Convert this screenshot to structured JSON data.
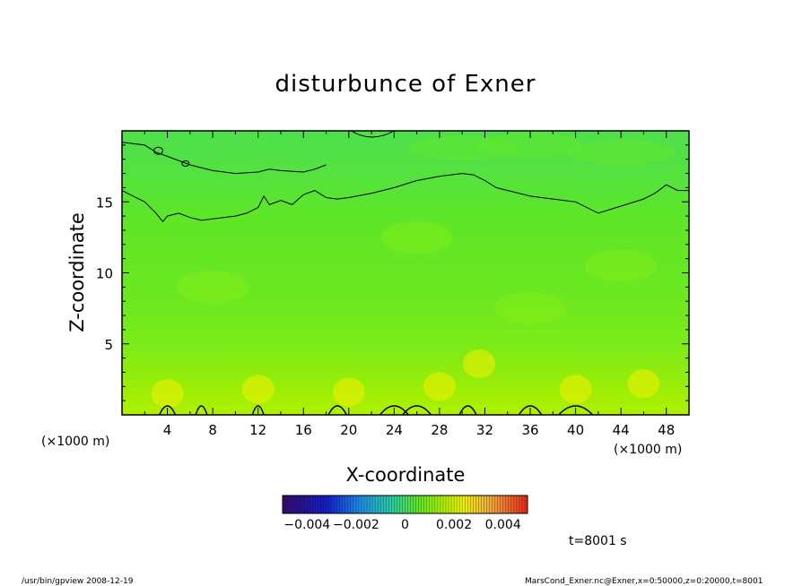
{
  "chart_data": {
    "type": "heatmap",
    "title": "disturbunce of Exner",
    "xlabel": "X-coordinate",
    "ylabel": "Z-coordinate",
    "x_unit_left": "(×1000 m)",
    "x_unit_right": "(×1000 m)",
    "xlim": [
      0,
      50
    ],
    "ylim": [
      0,
      20
    ],
    "x_ticks": [
      4,
      8,
      12,
      16,
      20,
      24,
      28,
      32,
      36,
      40,
      44,
      48
    ],
    "y_ticks": [
      5,
      10,
      15
    ],
    "colorbar": {
      "min": -0.005,
      "max": 0.005,
      "tick_labels": [
        "−0.004",
        "−0.002",
        "0",
        "0.002",
        "0.004"
      ],
      "tick_values": [
        -0.004,
        -0.002,
        0,
        0.002,
        0.004
      ],
      "colormap": "rainbow"
    },
    "field_by_height": {
      "z": [
        0,
        2,
        5,
        8,
        11,
        14,
        17,
        20
      ],
      "value": [
        0.0016,
        0.0013,
        0.0009,
        0.0007,
        0.0006,
        0.0005,
        0.0003,
        0.0002
      ]
    },
    "contour_upper": {
      "x": [
        0,
        1,
        2,
        3,
        3.6,
        4,
        5,
        6,
        7,
        8,
        9,
        10,
        11,
        12,
        12.5,
        13,
        14,
        15,
        16,
        17,
        18,
        19,
        20,
        22,
        24,
        26,
        28,
        30,
        31,
        32,
        33,
        36,
        40,
        42,
        44,
        46,
        47,
        48,
        49,
        50
      ],
      "z": [
        15.8,
        15.4,
        15.0,
        14.2,
        13.6,
        14.0,
        14.2,
        13.9,
        13.7,
        13.8,
        13.9,
        14.0,
        14.2,
        14.6,
        15.4,
        14.8,
        15.1,
        14.8,
        15.5,
        15.8,
        15.3,
        15.2,
        15.3,
        15.6,
        16.0,
        16.5,
        16.8,
        17.0,
        16.9,
        16.5,
        16.0,
        15.4,
        15.0,
        14.2,
        14.7,
        15.2,
        15.6,
        16.2,
        15.8,
        15.8
      ]
    },
    "contour_top": {
      "x": [
        0,
        2,
        3,
        4,
        6,
        8,
        10,
        12,
        13,
        14,
        16,
        17,
        18
      ],
      "z": [
        19.2,
        19.0,
        18.5,
        18.2,
        17.6,
        17.2,
        17.0,
        17.1,
        17.3,
        17.2,
        17.1,
        17.3,
        17.6
      ]
    },
    "contour_bottom_bumps_x": [
      4,
      7,
      12,
      19,
      24,
      26,
      30.5,
      36,
      40
    ],
    "contour_bottom_bumps_w": [
      1.4,
      1.0,
      1.0,
      1.6,
      2.5,
      2.5,
      1.5,
      2.0,
      3.0
    ]
  },
  "time_label": "t=8001 s",
  "footer_left": "/usr/bin/gpview   2008-12-19",
  "footer_right": "MarsCond_Exner.nc@Exner,x=0:50000,z=0:20000,t=8001"
}
